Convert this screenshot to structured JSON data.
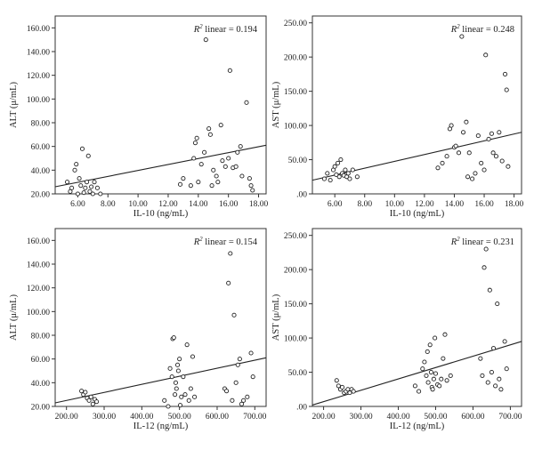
{
  "colors": {
    "axis": "#333333",
    "point_fill": "#ffffff",
    "point_stroke": "#222222",
    "fit_line": "#222222"
  },
  "chart_data": [
    {
      "id": "alt_vs_il10",
      "type": "scatter",
      "xlabel": "IL-10 (ng/mL)",
      "ylabel": "ALT (μ/mL)",
      "xlim": [
        4.5,
        18.5
      ],
      "ylim": [
        20,
        170
      ],
      "xticks": [
        6,
        8,
        10,
        12,
        14,
        16,
        18
      ],
      "xtick_labels": [
        "6.00",
        "8.00",
        "10.00",
        "12.00",
        "14.00",
        "16.00",
        "18.00"
      ],
      "yticks": [
        20,
        40,
        60,
        80,
        100,
        120,
        140,
        160
      ],
      "ytick_labels": [
        "20.00",
        "40.00",
        "60.00",
        "80.00",
        "100.00",
        "120.00",
        "140.00",
        "160.00"
      ],
      "r2_prefix": "R",
      "r2_sup": "2",
      "r2_text": " linear = 0.194",
      "fit_line": {
        "x": [
          4.5,
          18.5
        ],
        "y": [
          26,
          61
        ]
      },
      "points": [
        [
          5.3,
          30
        ],
        [
          5.5,
          22
        ],
        [
          5.6,
          25
        ],
        [
          5.8,
          40
        ],
        [
          5.9,
          45
        ],
        [
          6.0,
          20
        ],
        [
          6.1,
          33
        ],
        [
          6.2,
          27
        ],
        [
          6.3,
          58
        ],
        [
          6.4,
          21
        ],
        [
          6.5,
          25
        ],
        [
          6.6,
          30
        ],
        [
          6.7,
          52
        ],
        [
          6.8,
          22
        ],
        [
          6.9,
          26
        ],
        [
          7.0,
          20
        ],
        [
          7.1,
          30
        ],
        [
          7.3,
          25
        ],
        [
          7.5,
          20
        ],
        [
          12.8,
          28
        ],
        [
          13.0,
          33
        ],
        [
          13.5,
          27
        ],
        [
          13.7,
          50
        ],
        [
          13.8,
          63
        ],
        [
          13.9,
          67
        ],
        [
          14.0,
          30
        ],
        [
          14.2,
          45
        ],
        [
          14.4,
          55
        ],
        [
          14.5,
          150
        ],
        [
          14.7,
          75
        ],
        [
          14.8,
          70
        ],
        [
          14.9,
          27
        ],
        [
          15.0,
          40
        ],
        [
          15.2,
          35
        ],
        [
          15.3,
          30
        ],
        [
          15.5,
          78
        ],
        [
          15.6,
          48
        ],
        [
          15.8,
          43
        ],
        [
          16.0,
          50
        ],
        [
          16.1,
          124
        ],
        [
          16.3,
          42
        ],
        [
          16.5,
          43
        ],
        [
          16.6,
          55
        ],
        [
          16.8,
          60
        ],
        [
          16.9,
          35
        ],
        [
          17.2,
          97
        ],
        [
          17.4,
          33
        ],
        [
          17.5,
          27
        ],
        [
          17.6,
          23
        ]
      ]
    },
    {
      "id": "ast_vs_il10",
      "type": "scatter",
      "xlabel": "IL-10 (ng/mL)",
      "ylabel": "AST (μ/mL)",
      "xlim": [
        4.5,
        18.5
      ],
      "ylim": [
        0,
        260
      ],
      "xticks": [
        6,
        8,
        10,
        12,
        14,
        16,
        18
      ],
      "xtick_labels": [
        "6.00",
        "8.00",
        "10.00",
        "12.00",
        "14.00",
        "16.00",
        "18.00"
      ],
      "yticks": [
        0,
        50,
        100,
        150,
        200,
        250
      ],
      "ytick_labels": [
        ".00",
        "50.00",
        "100.00",
        "150.00",
        "200.00",
        "250.00"
      ],
      "r2_prefix": "R",
      "r2_sup": "2",
      "r2_text": " linear = 0.248",
      "fit_line": {
        "x": [
          4.5,
          18.5
        ],
        "y": [
          20,
          90
        ]
      },
      "points": [
        [
          5.3,
          22
        ],
        [
          5.5,
          30
        ],
        [
          5.7,
          20
        ],
        [
          5.9,
          35
        ],
        [
          6.0,
          40
        ],
        [
          6.1,
          28
        ],
        [
          6.2,
          45
        ],
        [
          6.3,
          25
        ],
        [
          6.4,
          50
        ],
        [
          6.5,
          30
        ],
        [
          6.6,
          27
        ],
        [
          6.7,
          35
        ],
        [
          6.8,
          25
        ],
        [
          6.9,
          30
        ],
        [
          7.0,
          22
        ],
        [
          7.2,
          35
        ],
        [
          7.5,
          25
        ],
        [
          12.9,
          38
        ],
        [
          13.2,
          45
        ],
        [
          13.5,
          55
        ],
        [
          13.7,
          95
        ],
        [
          13.8,
          100
        ],
        [
          14.0,
          68
        ],
        [
          14.1,
          70
        ],
        [
          14.3,
          60
        ],
        [
          14.5,
          230
        ],
        [
          14.6,
          90
        ],
        [
          14.8,
          105
        ],
        [
          14.9,
          25
        ],
        [
          15.0,
          60
        ],
        [
          15.2,
          22
        ],
        [
          15.4,
          30
        ],
        [
          15.6,
          85
        ],
        [
          15.8,
          45
        ],
        [
          16.0,
          35
        ],
        [
          16.1,
          203
        ],
        [
          16.3,
          80
        ],
        [
          16.5,
          88
        ],
        [
          16.6,
          60
        ],
        [
          16.8,
          55
        ],
        [
          17.0,
          90
        ],
        [
          17.2,
          48
        ],
        [
          17.4,
          175
        ],
        [
          17.5,
          152
        ],
        [
          17.6,
          40
        ]
      ]
    },
    {
      "id": "alt_vs_il12",
      "type": "scatter",
      "xlabel": "IL-12 (ng/mL)",
      "ylabel": "ALT (μ/mL)",
      "xlim": [
        170,
        730
      ],
      "ylim": [
        20,
        170
      ],
      "xticks": [
        200,
        300,
        400,
        500,
        600,
        700
      ],
      "xtick_labels": [
        "200.00",
        "300.00",
        "400.00",
        "500.00",
        "600.00",
        "700.00"
      ],
      "yticks": [
        20,
        40,
        60,
        80,
        100,
        120,
        140,
        160
      ],
      "ytick_labels": [
        "20.00",
        "40.00",
        "60.00",
        "80.00",
        "100.00",
        "120.00",
        "140.00",
        "160.00"
      ],
      "r2_prefix": "R",
      "r2_sup": "2",
      "r2_text": " linear = 0.154",
      "fit_line": {
        "x": [
          170,
          730
        ],
        "y": [
          23,
          61
        ]
      },
      "points": [
        [
          240,
          33
        ],
        [
          245,
          30
        ],
        [
          250,
          32
        ],
        [
          255,
          27
        ],
        [
          260,
          25
        ],
        [
          265,
          28
        ],
        [
          270,
          22
        ],
        [
          275,
          26
        ],
        [
          280,
          24
        ],
        [
          460,
          25
        ],
        [
          470,
          20
        ],
        [
          475,
          52
        ],
        [
          480,
          45
        ],
        [
          482,
          77
        ],
        [
          485,
          78
        ],
        [
          488,
          30
        ],
        [
          490,
          40
        ],
        [
          492,
          35
        ],
        [
          495,
          55
        ],
        [
          497,
          50
        ],
        [
          500,
          60
        ],
        [
          502,
          21
        ],
        [
          505,
          28
        ],
        [
          510,
          45
        ],
        [
          515,
          30
        ],
        [
          520,
          72
        ],
        [
          525,
          25
        ],
        [
          530,
          35
        ],
        [
          535,
          62
        ],
        [
          540,
          28
        ],
        [
          620,
          35
        ],
        [
          625,
          33
        ],
        [
          630,
          124
        ],
        [
          635,
          149
        ],
        [
          640,
          25
        ],
        [
          645,
          97
        ],
        [
          650,
          40
        ],
        [
          655,
          55
        ],
        [
          660,
          60
        ],
        [
          665,
          22
        ],
        [
          670,
          25
        ],
        [
          680,
          28
        ],
        [
          690,
          65
        ],
        [
          695,
          45
        ]
      ]
    },
    {
      "id": "ast_vs_il12",
      "type": "scatter",
      "xlabel": "IL-12 (ng/mL)",
      "ylabel": "AST (μ/mL)",
      "xlim": [
        170,
        730
      ],
      "ylim": [
        0,
        260
      ],
      "xticks": [
        200,
        300,
        400,
        500,
        600,
        700
      ],
      "xtick_labels": [
        "200.00",
        "300.00",
        "400.00",
        "500.00",
        "600.00",
        "700.00"
      ],
      "yticks": [
        0,
        50,
        100,
        150,
        200,
        250
      ],
      "ytick_labels": [
        ".00",
        "50.00",
        "100.00",
        "150.00",
        "200.00",
        "250.00"
      ],
      "r2_prefix": "R",
      "r2_sup": "2",
      "r2_text": " linear = 0.231",
      "fit_line": {
        "x": [
          170,
          730
        ],
        "y": [
          2,
          95
        ]
      },
      "points": [
        [
          235,
          38
        ],
        [
          240,
          30
        ],
        [
          245,
          25
        ],
        [
          250,
          28
        ],
        [
          255,
          20
        ],
        [
          260,
          22
        ],
        [
          265,
          25
        ],
        [
          270,
          20
        ],
        [
          275,
          25
        ],
        [
          280,
          22
        ],
        [
          445,
          30
        ],
        [
          455,
          22
        ],
        [
          465,
          55
        ],
        [
          470,
          65
        ],
        [
          475,
          45
        ],
        [
          478,
          80
        ],
        [
          480,
          35
        ],
        [
          485,
          90
        ],
        [
          488,
          50
        ],
        [
          490,
          28
        ],
        [
          492,
          25
        ],
        [
          495,
          40
        ],
        [
          498,
          100
        ],
        [
          500,
          48
        ],
        [
          505,
          32
        ],
        [
          510,
          30
        ],
        [
          515,
          40
        ],
        [
          520,
          70
        ],
        [
          525,
          105
        ],
        [
          530,
          38
        ],
        [
          540,
          45
        ],
        [
          620,
          70
        ],
        [
          625,
          45
        ],
        [
          630,
          203
        ],
        [
          635,
          230
        ],
        [
          640,
          35
        ],
        [
          645,
          170
        ],
        [
          650,
          50
        ],
        [
          655,
          85
        ],
        [
          660,
          30
        ],
        [
          665,
          150
        ],
        [
          670,
          40
        ],
        [
          675,
          25
        ],
        [
          685,
          95
        ],
        [
          690,
          55
        ]
      ]
    }
  ]
}
